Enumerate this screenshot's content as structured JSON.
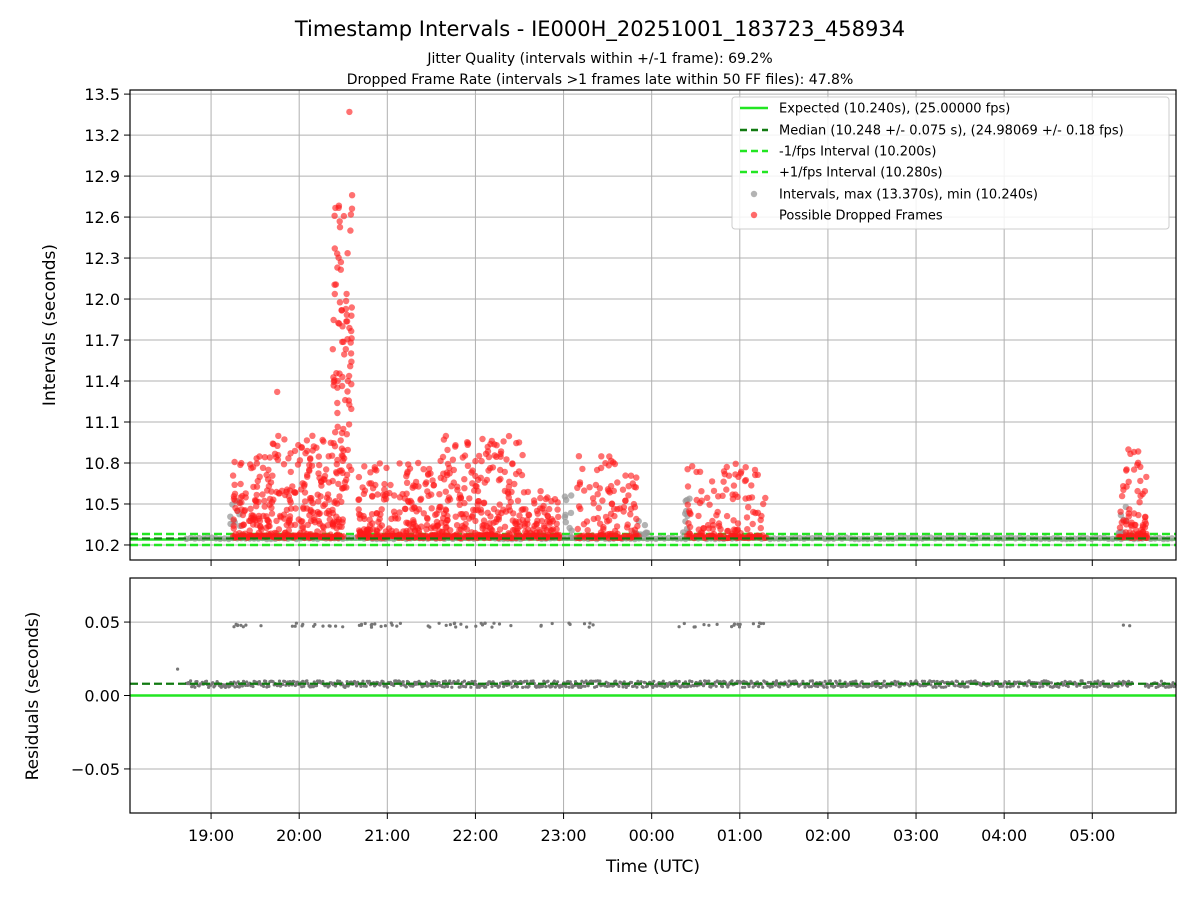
{
  "title": "Timestamp Intervals - IE000H_20251001_183723_458934",
  "subtitle1": "Jitter Quality (intervals within +/-1 frame): 69.2%",
  "subtitle2": "Dropped Frame Rate (intervals >1 frames late within 50 FF files): 47.8%",
  "colors": {
    "expected": "#22e622",
    "median": "#117a11",
    "interval_band": "#22e622",
    "normal_points": "#999999",
    "dropped_points": "#ff1a1a",
    "residual_points": "#777777",
    "grid": "#b0b0b0"
  },
  "chart_data": [
    {
      "type": "scatter",
      "panel": "top",
      "ylabel": "Intervals (seconds)",
      "ylim": [
        10.09,
        13.53
      ],
      "xlim_hours": [
        18.08,
        29.95
      ],
      "yticks": [
        "10.2",
        "10.5",
        "10.8",
        "11.1",
        "11.4",
        "11.7",
        "12.0",
        "12.3",
        "12.6",
        "12.9",
        "13.2",
        "13.5"
      ],
      "ytick_values": [
        10.2,
        10.5,
        10.8,
        11.1,
        11.4,
        11.7,
        12.0,
        12.3,
        12.6,
        12.9,
        13.2,
        13.5
      ],
      "lines": {
        "expected": 10.24,
        "median": 10.248,
        "minus_interval": 10.2,
        "plus_interval": 10.28
      },
      "legend_position": "top-right",
      "legend": [
        "Expected (10.240s), (25.00000 fps)",
        "Median (10.248 +/- 0.075 s), (24.98069 +/- 0.18 fps)",
        "-1/fps Interval (10.200s)",
        "+1/fps Interval (10.280s)",
        "Intervals, max (13.370s), min (10.240s)",
        "Possible Dropped Frames"
      ],
      "series": [
        {
          "name": "Intervals",
          "baseline": 10.248,
          "max": 13.37,
          "min": 10.24
        },
        {
          "name": "Possible Dropped Frames",
          "clusters_hours": [
            [
              19.2,
              20.55
            ],
            [
              20.55,
              20.65
            ],
            [
              20.65,
              22.95
            ],
            [
              23.1,
              23.9
            ],
            [
              24.4,
              25.3
            ],
            [
              29.3,
              29.6
            ]
          ]
        }
      ]
    },
    {
      "type": "scatter",
      "panel": "bottom",
      "ylabel": "Residuals (seconds)",
      "xlabel": "Time (UTC)",
      "ylim": [
        -0.08,
        0.08
      ],
      "yticks": [
        "−0.05",
        "0.00",
        "0.05"
      ],
      "ytick_values": [
        -0.05,
        0.0,
        0.05
      ],
      "lines": {
        "expected": 0.0,
        "median": 0.008
      },
      "series": [
        {
          "name": "Residuals",
          "main_level": 0.008,
          "upper_level": 0.048
        }
      ]
    }
  ],
  "xaxis": {
    "ticks": [
      "19:00",
      "20:00",
      "21:00",
      "22:00",
      "23:00",
      "00:00",
      "01:00",
      "02:00",
      "03:00",
      "04:00",
      "05:00"
    ],
    "tick_hours": [
      19,
      20,
      21,
      22,
      23,
      24,
      25,
      26,
      27,
      28,
      29
    ]
  }
}
